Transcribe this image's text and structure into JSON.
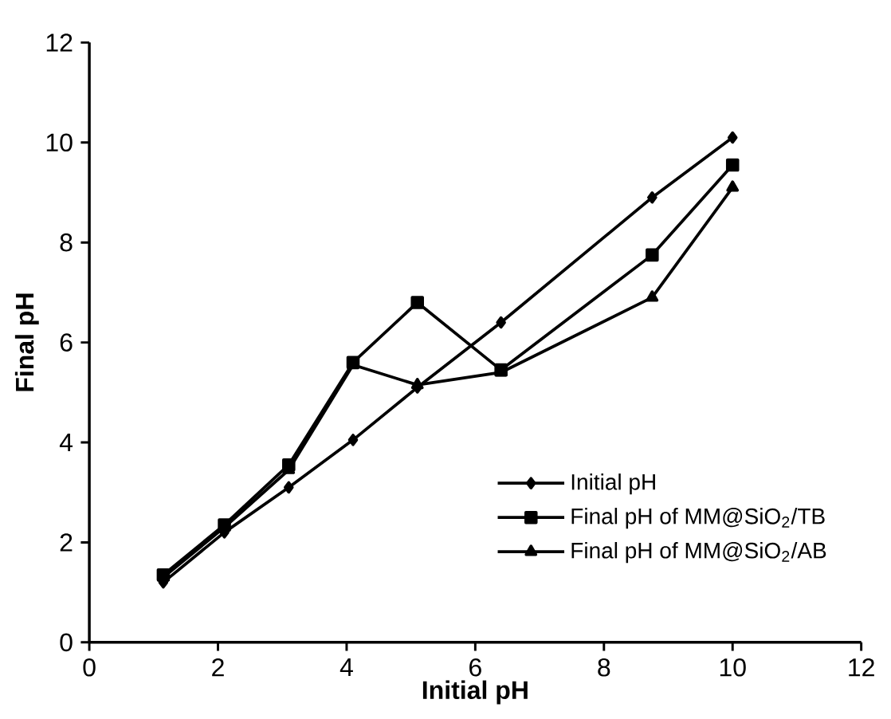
{
  "chart_data": {
    "type": "line",
    "xlabel": "Initial pH",
    "ylabel": "Final pH",
    "xlim": [
      0,
      12
    ],
    "ylim": [
      0,
      12
    ],
    "xticks": [
      0,
      2,
      4,
      6,
      8,
      10,
      12
    ],
    "yticks": [
      0,
      2,
      4,
      6,
      8,
      10,
      12
    ],
    "grid": false,
    "legend": "bottom right",
    "series": [
      {
        "name": "Initial pH",
        "color": "#000000",
        "marker": "diamond",
        "x": [
          1.15,
          2.1,
          3.1,
          4.1,
          5.1,
          6.4,
          8.75,
          10
        ],
        "values": [
          1.2,
          2.2,
          3.1,
          4.05,
          5.1,
          6.4,
          8.9,
          10.1
        ]
      },
      {
        "name": "Final pH of MM@SiO$_{2}$/TB",
        "color": "#000000",
        "marker": "square",
        "x": [
          1.15,
          2.1,
          3.1,
          4.1,
          5.1,
          6.4,
          8.75,
          10
        ],
        "values": [
          1.35,
          2.35,
          3.55,
          5.6,
          6.8,
          5.45,
          7.75,
          9.55
        ]
      },
      {
        "name": "Final pH of MM@SiO$_{2}$/AB",
        "color": "#000000",
        "marker": "triangle",
        "x": [
          1.15,
          2.1,
          3.1,
          4.1,
          5.1,
          6.4,
          8.75,
          10
        ],
        "values": [
          1.3,
          2.3,
          3.45,
          5.55,
          5.15,
          5.4,
          6.9,
          9.1
        ]
      }
    ]
  }
}
